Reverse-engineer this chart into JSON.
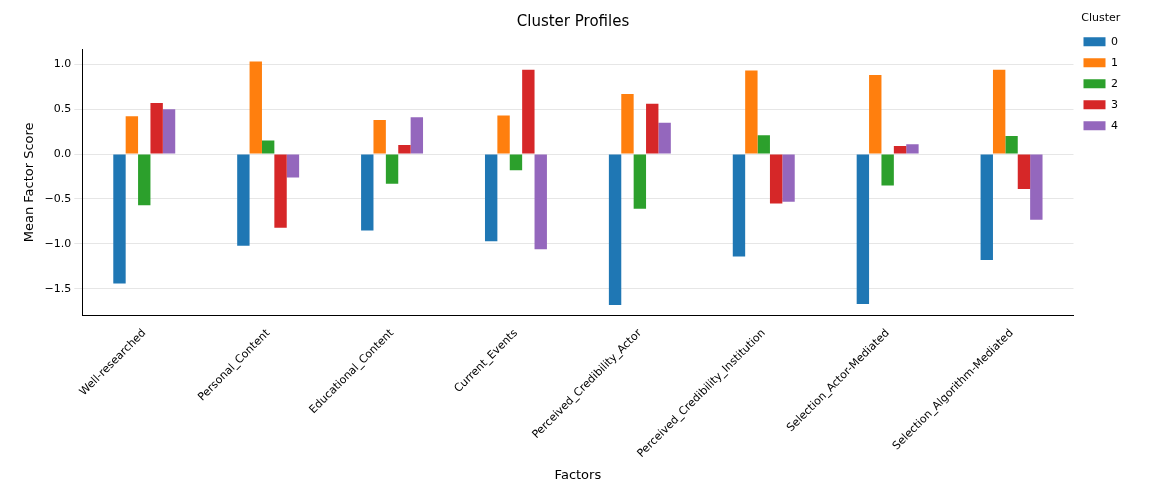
{
  "chart_data": {
    "type": "bar",
    "title": "Cluster Profiles",
    "xlabel": "Factors",
    "ylabel": "Mean Factor Score",
    "legend_title": "Cluster",
    "categories": [
      "Well-researched",
      "Personal_Content",
      "Educational_Content",
      "Current_Events",
      "Perceived_Credibility_Actor",
      "Perceived_Credibility_Institution",
      "Selection_Actor-Mediated",
      "Selection_Algorithm-Mediated"
    ],
    "series": [
      {
        "name": "0",
        "color": "#1f77b4",
        "values": [
          -1.44,
          -1.02,
          -0.85,
          -0.97,
          -1.68,
          -1.14,
          -1.67,
          -1.18
        ]
      },
      {
        "name": "1",
        "color": "#ff7f0e",
        "values": [
          0.42,
          1.03,
          0.38,
          0.43,
          0.67,
          0.93,
          0.88,
          0.94
        ]
      },
      {
        "name": "2",
        "color": "#2ca02c",
        "values": [
          -0.57,
          0.15,
          -0.33,
          -0.18,
          -0.61,
          0.21,
          -0.35,
          0.2
        ]
      },
      {
        "name": "3",
        "color": "#d62728",
        "values": [
          0.57,
          -0.82,
          0.1,
          0.94,
          0.56,
          -0.55,
          0.09,
          -0.39
        ]
      },
      {
        "name": "4",
        "color": "#9467bd",
        "values": [
          0.5,
          -0.26,
          0.41,
          -1.06,
          0.35,
          -0.53,
          0.11,
          -0.73
        ]
      }
    ],
    "ylim": [
      -1.8,
      1.17
    ],
    "yticks": [
      {
        "value": -1.5,
        "label": "−1.5"
      },
      {
        "value": -1,
        "label": "−1.0"
      },
      {
        "value": -0.5,
        "label": "−0.5"
      },
      {
        "value": 0,
        "label": "0.0"
      },
      {
        "value": 0.5,
        "label": "0.5"
      },
      {
        "value": 1,
        "label": "1.0"
      }
    ],
    "grid": "y",
    "legend": "right"
  }
}
